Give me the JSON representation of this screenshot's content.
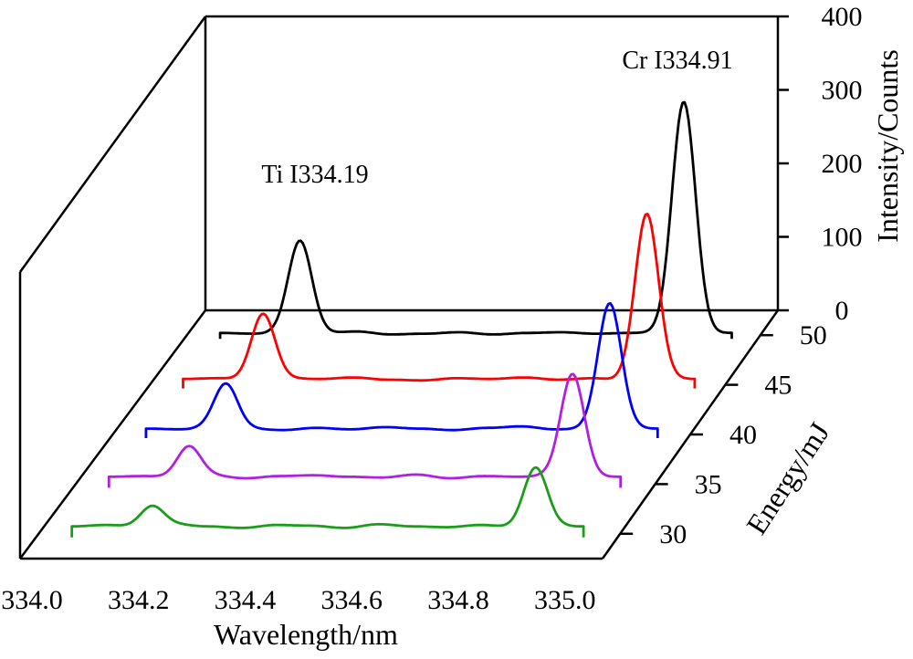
{
  "chart_data": {
    "type": "line",
    "subtype": "3d-waterfall",
    "title": "",
    "xlabel": "Wavelength/nm",
    "ylabel": "Intensity/Counts",
    "zlabel": "Energy/mJ",
    "xlim": [
      334.0,
      335.05
    ],
    "ylim": [
      0,
      400
    ],
    "x_ticks": [
      "334.0",
      "334.2",
      "334.4",
      "334.6",
      "334.8",
      "335.0"
    ],
    "y_ticks": [
      "0",
      "100",
      "200",
      "300",
      "400"
    ],
    "z_ticks": [
      "30",
      "35",
      "40",
      "45",
      "50"
    ],
    "annotations": [
      {
        "text": "Ti I334.19",
        "x": 334.19,
        "y": 190
      },
      {
        "text": "Cr I334.91",
        "x": 334.91,
        "y": 330
      }
    ],
    "series": [
      {
        "energy": 30,
        "color": "#1a9e1a",
        "peaks": [
          {
            "x": 334.19,
            "height": 28
          },
          {
            "x": 334.91,
            "height": 80
          }
        ],
        "baseline": 10,
        "wiggle": [
          0,
          2,
          -1,
          3,
          0,
          -2,
          2,
          1,
          -2,
          3,
          0,
          -1,
          2,
          -1,
          1,
          0
        ]
      },
      {
        "energy": 35,
        "color": "#b020e0",
        "peaks": [
          {
            "x": 334.19,
            "height": 42
          },
          {
            "x": 334.91,
            "height": 140
          }
        ],
        "baseline": 10,
        "wiggle": [
          0,
          1,
          -1,
          2,
          -2,
          1,
          2,
          0,
          -1,
          3,
          -2,
          1,
          0,
          2,
          -1,
          0
        ]
      },
      {
        "energy": 40,
        "color": "#0000ff",
        "peaks": [
          {
            "x": 334.19,
            "height": 60
          },
          {
            "x": 334.91,
            "height": 170
          }
        ],
        "baseline": 8,
        "wiggle": [
          0,
          -1,
          2,
          0,
          -2,
          1,
          -1,
          2,
          0,
          -2,
          1,
          3,
          -1,
          0,
          1,
          0
        ]
      },
      {
        "energy": 45,
        "color": "#ff0000",
        "peaks": [
          {
            "x": 334.19,
            "height": 90
          },
          {
            "x": 334.91,
            "height": 225
          }
        ],
        "baseline": 8,
        "wiggle": [
          0,
          1,
          -2,
          1,
          0,
          2,
          -1,
          -2,
          1,
          0,
          2,
          -1,
          1,
          -2,
          1,
          0
        ]
      },
      {
        "energy": 50,
        "color": "#000000",
        "peaks": [
          {
            "x": 334.19,
            "height": 125
          },
          {
            "x": 334.91,
            "height": 315
          }
        ],
        "baseline": 3,
        "wiggle": [
          0,
          -1,
          1,
          0,
          2,
          -2,
          -1,
          1,
          -2,
          0,
          1,
          -1,
          0,
          1,
          -1,
          0
        ]
      }
    ],
    "legend": "none",
    "grid": false
  }
}
